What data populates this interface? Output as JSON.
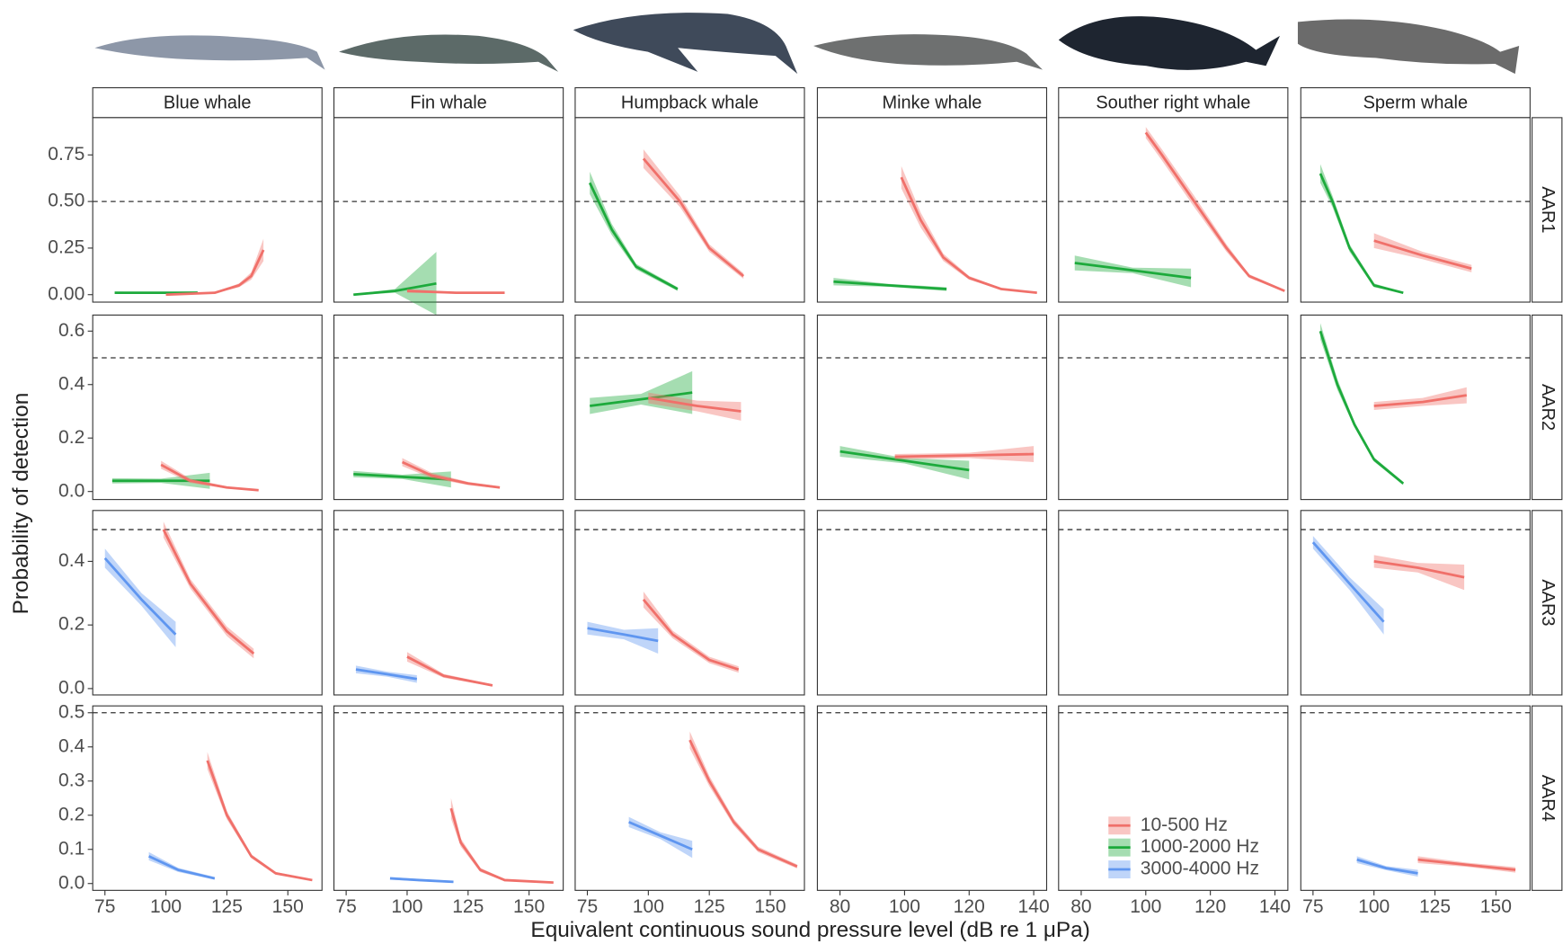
{
  "chart_data": {
    "type": "line",
    "x_label": "Equivalent continuous sound pressure level (dB re 1 μPa)",
    "y_label": "Probability of detection",
    "hline": 0.5,
    "legend": "bottom-right",
    "series": [
      {
        "name": "10-500 Hz",
        "color": "#F0706A"
      },
      {
        "name": "1000-2000 Hz",
        "color": "#1DAA3C"
      },
      {
        "name": "3000-4000 Hz",
        "color": "#5F96F0"
      }
    ],
    "columns": [
      {
        "title": "Blue whale",
        "xlim": [
          70,
          164
        ],
        "xticks": [
          75,
          100,
          125,
          150
        ]
      },
      {
        "title": "Fin whale",
        "xlim": [
          70,
          164
        ],
        "xticks": [
          75,
          100,
          125,
          150
        ]
      },
      {
        "title": "Humpback whale",
        "xlim": [
          70,
          164
        ],
        "xticks": [
          75,
          100,
          125,
          150
        ]
      },
      {
        "title": "Minke whale",
        "xlim": [
          73,
          144
        ],
        "xticks": [
          80,
          100,
          120,
          140
        ]
      },
      {
        "title": "Souther right whale",
        "xlim": [
          73,
          144
        ],
        "xticks": [
          80,
          100,
          120,
          140
        ]
      },
      {
        "title": "Sperm whale",
        "xlim": [
          70,
          164
        ],
        "xticks": [
          75,
          100,
          125,
          150
        ]
      }
    ],
    "rows": [
      {
        "label": "AAR1",
        "ylim": [
          -0.04,
          0.95
        ],
        "yticks": [
          {
            "value": 0,
            "label": "0.00"
          },
          0.25,
          {
            "value": 0.5,
            "label": "0.50"
          },
          0.75
        ]
      },
      {
        "label": "AAR2",
        "ylim": [
          -0.03,
          0.66
        ],
        "yticks": [
          {
            "value": 0,
            "label": "0.0"
          },
          0.2,
          0.4,
          0.6
        ]
      },
      {
        "label": "AAR3",
        "ylim": [
          -0.02,
          0.56
        ],
        "yticks": [
          {
            "value": 0,
            "label": "0.0"
          },
          0.2,
          0.4
        ]
      },
      {
        "label": "AAR4",
        "ylim": [
          -0.02,
          0.52
        ],
        "yticks": [
          {
            "value": 0,
            "label": "0.0"
          },
          0.1,
          0.2,
          0.3,
          0.4,
          0.5
        ]
      }
    ],
    "panels": [
      [
        [
          {
            "series": 1,
            "x": [
              79,
              96,
              113
            ],
            "values": [
              0.01,
              0.01,
              0.01
            ],
            "ci": [
              0.006,
              0.004,
              0.008
            ]
          },
          {
            "series": 0,
            "x": [
              100,
              120,
              130,
              135,
              140
            ],
            "values": [
              0,
              0.01,
              0.05,
              0.1,
              0.24
            ],
            "ci": [
              0.002,
              0.004,
              0.01,
              0.02,
              0.06
            ]
          }
        ],
        [
          {
            "series": 1,
            "x": [
              78,
              95,
              112
            ],
            "values": [
              0,
              0.02,
              0.06
            ],
            "ci": [
              0.003,
              0.01,
              0.17
            ]
          },
          {
            "series": 0,
            "x": [
              100,
              120,
              140
            ],
            "values": [
              0.02,
              0.01,
              0.01
            ],
            "ci": [
              0.01,
              0.004,
              0.004
            ]
          }
        ],
        [
          {
            "series": 1,
            "x": [
              76,
              85,
              95,
              112
            ],
            "values": [
              0.6,
              0.35,
              0.15,
              0.03
            ],
            "ci": [
              0.06,
              0.03,
              0.015,
              0.01
            ]
          },
          {
            "series": 0,
            "x": [
              98,
              113,
              125,
              139
            ],
            "values": [
              0.73,
              0.5,
              0.25,
              0.1
            ],
            "ci": [
              0.05,
              0.03,
              0.02,
              0.015
            ]
          }
        ],
        [
          {
            "series": 1,
            "x": [
              78,
              95,
              113
            ],
            "values": [
              0.07,
              0.05,
              0.03
            ],
            "ci": [
              0.02,
              0.008,
              0.01
            ]
          },
          {
            "series": 0,
            "x": [
              99,
              105,
              112,
              120,
              130,
              141
            ],
            "values": [
              0.63,
              0.4,
              0.2,
              0.09,
              0.03,
              0.01
            ],
            "ci": [
              0.06,
              0.04,
              0.02,
              0.01,
              0.005,
              0.003
            ]
          }
        ],
        [
          {
            "series": 1,
            "x": [
              78,
              96,
              114
            ],
            "values": [
              0.17,
              0.13,
              0.09
            ],
            "ci": [
              0.04,
              0.015,
              0.05
            ]
          },
          {
            "series": 0,
            "x": [
              100,
              105,
              115,
              125,
              132,
              143
            ],
            "values": [
              0.87,
              0.75,
              0.5,
              0.25,
              0.1,
              0.02
            ],
            "ci": [
              0.03,
              0.03,
              0.03,
              0.02,
              0.01,
              0.005
            ]
          }
        ],
        [
          {
            "series": 1,
            "x": [
              78,
              83,
              90,
              100,
              112
            ],
            "values": [
              0.65,
              0.5,
              0.25,
              0.05,
              0.01
            ],
            "ci": [
              0.05,
              0.03,
              0.02,
              0.01,
              0.003
            ]
          },
          {
            "series": 0,
            "x": [
              100,
              120,
              140
            ],
            "values": [
              0.29,
              0.21,
              0.14
            ],
            "ci": [
              0.04,
              0.02,
              0.02
            ]
          }
        ]
      ],
      [
        [
          {
            "series": 1,
            "x": [
              78,
              98,
              118
            ],
            "values": [
              0.04,
              0.04,
              0.04
            ],
            "ci": [
              0.01,
              0.008,
              0.03
            ]
          },
          {
            "series": 0,
            "x": [
              98,
              110,
              125,
              138
            ],
            "values": [
              0.1,
              0.04,
              0.015,
              0.005
            ],
            "ci": [
              0.015,
              0.008,
              0.004,
              0.002
            ]
          }
        ],
        [
          {
            "series": 1,
            "x": [
              78,
              98,
              118
            ],
            "values": [
              0.065,
              0.055,
              0.045
            ],
            "ci": [
              0.012,
              0.008,
              0.03
            ]
          },
          {
            "series": 0,
            "x": [
              98,
              110,
              125,
              138
            ],
            "values": [
              0.11,
              0.06,
              0.03,
              0.015
            ],
            "ci": [
              0.015,
              0.01,
              0.006,
              0.004
            ]
          }
        ],
        [
          {
            "series": 1,
            "x": [
              76,
              97,
              118
            ],
            "values": [
              0.32,
              0.345,
              0.37
            ],
            "ci": [
              0.03,
              0.02,
              0.08
            ]
          },
          {
            "series": 0,
            "x": [
              100,
              120,
              138
            ],
            "values": [
              0.35,
              0.32,
              0.3
            ],
            "ci": [
              0.02,
              0.02,
              0.035
            ]
          }
        ],
        [
          {
            "series": 1,
            "x": [
              80,
              100,
              120
            ],
            "values": [
              0.15,
              0.115,
              0.08
            ],
            "ci": [
              0.02,
              0.01,
              0.035
            ]
          },
          {
            "series": 0,
            "x": [
              97,
              120,
              140
            ],
            "values": [
              0.13,
              0.135,
              0.14
            ],
            "ci": [
              0.01,
              0.01,
              0.03
            ]
          }
        ],
        [],
        [
          {
            "series": 1,
            "x": [
              78,
              85,
              92,
              100,
              112
            ],
            "values": [
              0.6,
              0.4,
              0.25,
              0.12,
              0.03
            ],
            "ci": [
              0.03,
              0.02,
              0.01,
              0.008,
              0.006
            ]
          },
          {
            "series": 0,
            "x": [
              100,
              120,
              138
            ],
            "values": [
              0.32,
              0.335,
              0.36
            ],
            "ci": [
              0.015,
              0.015,
              0.03
            ]
          }
        ]
      ],
      [
        [
          {
            "series": 2,
            "x": [
              75,
              90,
              104
            ],
            "values": [
              0.41,
              0.28,
              0.17
            ],
            "ci": [
              0.03,
              0.02,
              0.04
            ]
          },
          {
            "series": 0,
            "x": [
              99,
              110,
              125,
              136
            ],
            "values": [
              0.5,
              0.33,
              0.18,
              0.11
            ],
            "ci": [
              0.025,
              0.015,
              0.015,
              0.015
            ]
          }
        ],
        [
          {
            "series": 2,
            "x": [
              79,
              92,
              104
            ],
            "values": [
              0.06,
              0.045,
              0.03
            ],
            "ci": [
              0.012,
              0.008,
              0.012
            ]
          },
          {
            "series": 0,
            "x": [
              100,
              115,
              135
            ],
            "values": [
              0.1,
              0.04,
              0.01
            ],
            "ci": [
              0.015,
              0.006,
              0.003
            ]
          }
        ],
        [
          {
            "series": 2,
            "x": [
              75,
              90,
              104
            ],
            "values": [
              0.19,
              0.17,
              0.15
            ],
            "ci": [
              0.02,
              0.015,
              0.04
            ]
          },
          {
            "series": 0,
            "x": [
              98,
              110,
              125,
              137
            ],
            "values": [
              0.28,
              0.17,
              0.09,
              0.06
            ],
            "ci": [
              0.025,
              0.012,
              0.01,
              0.01
            ]
          }
        ],
        [],
        [],
        [
          {
            "series": 2,
            "x": [
              75,
              90,
              104
            ],
            "values": [
              0.46,
              0.33,
              0.21
            ],
            "ci": [
              0.02,
              0.02,
              0.04
            ]
          },
          {
            "series": 0,
            "x": [
              100,
              118,
              137
            ],
            "values": [
              0.4,
              0.38,
              0.35
            ],
            "ci": [
              0.02,
              0.015,
              0.04
            ]
          }
        ]
      ],
      [
        [
          {
            "series": 2,
            "x": [
              93,
              105,
              120
            ],
            "values": [
              0.08,
              0.04,
              0.015
            ],
            "ci": [
              0.012,
              0.006,
              0.004
            ]
          },
          {
            "series": 0,
            "x": [
              117,
              125,
              135,
              145,
              160
            ],
            "values": [
              0.36,
              0.2,
              0.08,
              0.03,
              0.01
            ],
            "ci": [
              0.025,
              0.012,
              0.006,
              0.004,
              0.002
            ]
          }
        ],
        [
          {
            "series": 2,
            "x": [
              93,
              105,
              119
            ],
            "values": [
              0.015,
              0.01,
              0.005
            ],
            "ci": [
              0.004,
              0.003,
              0.003
            ]
          },
          {
            "series": 0,
            "x": [
              118,
              122,
              130,
              140,
              160
            ],
            "values": [
              0.22,
              0.12,
              0.04,
              0.01,
              0.003
            ],
            "ci": [
              0.03,
              0.012,
              0.006,
              0.003,
              0.002
            ]
          }
        ],
        [
          {
            "series": 2,
            "x": [
              92,
              105,
              118
            ],
            "values": [
              0.18,
              0.14,
              0.1
            ],
            "ci": [
              0.015,
              0.01,
              0.025
            ]
          },
          {
            "series": 0,
            "x": [
              117,
              125,
              135,
              145,
              161
            ],
            "values": [
              0.42,
              0.3,
              0.18,
              0.1,
              0.05
            ],
            "ci": [
              0.025,
              0.015,
              0.01,
              0.008,
              0.006
            ]
          }
        ],
        [],
        [],
        [
          {
            "series": 2,
            "x": [
              93,
              105,
              118
            ],
            "values": [
              0.07,
              0.045,
              0.03
            ],
            "ci": [
              0.01,
              0.006,
              0.01
            ]
          },
          {
            "series": 0,
            "x": [
              118,
              138,
              158
            ],
            "values": [
              0.07,
              0.055,
              0.04
            ],
            "ci": [
              0.01,
              0.006,
              0.008
            ]
          }
        ]
      ]
    ]
  }
}
